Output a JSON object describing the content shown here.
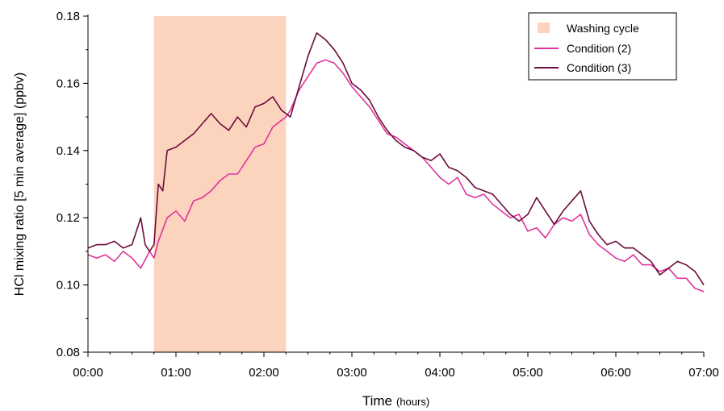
{
  "chart_data": {
    "type": "line",
    "xlabel": "Time",
    "xlabel_unit": "(hours)",
    "ylabel": "HCl mixing ratio [5 min average] (ppbv)",
    "xlim": [
      0,
      7
    ],
    "ylim": [
      0.08,
      0.18
    ],
    "x_ticks": [
      {
        "value": 0,
        "label": "00:00"
      },
      {
        "value": 1,
        "label": "01:00"
      },
      {
        "value": 2,
        "label": "02:00"
      },
      {
        "value": 3,
        "label": "03:00"
      },
      {
        "value": 4,
        "label": "04:00"
      },
      {
        "value": 5,
        "label": "05:00"
      },
      {
        "value": 6,
        "label": "06:00"
      },
      {
        "value": 7,
        "label": "07:00"
      }
    ],
    "y_ticks": [
      {
        "value": 0.08,
        "label": "0.08"
      },
      {
        "value": 0.1,
        "label": "0.10"
      },
      {
        "value": 0.12,
        "label": "0.12"
      },
      {
        "value": 0.14,
        "label": "0.14"
      },
      {
        "value": 0.16,
        "label": "0.16"
      },
      {
        "value": 0.18,
        "label": "0.18"
      }
    ],
    "grid": false,
    "legend_position": "top-right",
    "shaded_region": {
      "name": "Washing cycle",
      "x_start": 0.75,
      "x_end": 2.25,
      "color": "#fcd3bd"
    },
    "series": [
      {
        "name": "Condition (2)",
        "color": "#e0349c",
        "x": [
          0.0,
          0.1,
          0.2,
          0.3,
          0.4,
          0.5,
          0.6,
          0.7,
          0.75,
          0.8,
          0.9,
          1.0,
          1.1,
          1.2,
          1.3,
          1.4,
          1.5,
          1.6,
          1.7,
          1.8,
          1.9,
          2.0,
          2.1,
          2.2,
          2.25,
          2.3,
          2.4,
          2.5,
          2.6,
          2.7,
          2.8,
          2.9,
          3.0,
          3.1,
          3.2,
          3.3,
          3.4,
          3.5,
          3.6,
          3.7,
          3.8,
          3.9,
          4.0,
          4.1,
          4.2,
          4.3,
          4.4,
          4.5,
          4.6,
          4.7,
          4.8,
          4.9,
          5.0,
          5.1,
          5.2,
          5.3,
          5.4,
          5.5,
          5.6,
          5.7,
          5.8,
          5.9,
          6.0,
          6.1,
          6.2,
          6.3,
          6.4,
          6.5,
          6.6,
          6.7,
          6.8,
          6.9,
          7.0
        ],
        "y": [
          0.109,
          0.108,
          0.109,
          0.107,
          0.11,
          0.108,
          0.105,
          0.11,
          0.108,
          0.113,
          0.12,
          0.122,
          0.119,
          0.125,
          0.126,
          0.128,
          0.131,
          0.133,
          0.133,
          0.137,
          0.141,
          0.142,
          0.147,
          0.149,
          0.15,
          0.152,
          0.158,
          0.162,
          0.166,
          0.167,
          0.166,
          0.163,
          0.159,
          0.156,
          0.153,
          0.149,
          0.145,
          0.144,
          0.142,
          0.14,
          0.138,
          0.135,
          0.132,
          0.13,
          0.132,
          0.127,
          0.126,
          0.127,
          0.124,
          0.122,
          0.12,
          0.121,
          0.116,
          0.117,
          0.114,
          0.118,
          0.12,
          0.119,
          0.121,
          0.115,
          0.112,
          0.11,
          0.108,
          0.107,
          0.109,
          0.106,
          0.106,
          0.104,
          0.105,
          0.102,
          0.102,
          0.099,
          0.098
        ]
      },
      {
        "name": "Condition (3)",
        "color": "#6b0c3a",
        "x": [
          0.0,
          0.1,
          0.2,
          0.3,
          0.4,
          0.5,
          0.55,
          0.6,
          0.65,
          0.7,
          0.75,
          0.8,
          0.85,
          0.9,
          1.0,
          1.1,
          1.2,
          1.3,
          1.4,
          1.5,
          1.6,
          1.7,
          1.8,
          1.9,
          2.0,
          2.1,
          2.2,
          2.25,
          2.3,
          2.4,
          2.5,
          2.6,
          2.7,
          2.8,
          2.9,
          3.0,
          3.1,
          3.2,
          3.3,
          3.4,
          3.5,
          3.6,
          3.7,
          3.8,
          3.9,
          4.0,
          4.1,
          4.2,
          4.3,
          4.4,
          4.5,
          4.6,
          4.7,
          4.8,
          4.9,
          5.0,
          5.1,
          5.2,
          5.3,
          5.4,
          5.5,
          5.6,
          5.7,
          5.8,
          5.9,
          6.0,
          6.1,
          6.2,
          6.3,
          6.4,
          6.5,
          6.6,
          6.7,
          6.8,
          6.9,
          7.0
        ],
        "y": [
          0.111,
          0.112,
          0.112,
          0.113,
          0.111,
          0.112,
          0.116,
          0.12,
          0.112,
          0.11,
          0.112,
          0.13,
          0.128,
          0.14,
          0.141,
          0.143,
          0.145,
          0.148,
          0.151,
          0.148,
          0.146,
          0.15,
          0.147,
          0.153,
          0.154,
          0.156,
          0.152,
          0.151,
          0.15,
          0.159,
          0.168,
          0.175,
          0.173,
          0.17,
          0.166,
          0.16,
          0.158,
          0.155,
          0.15,
          0.146,
          0.143,
          0.141,
          0.14,
          0.138,
          0.137,
          0.139,
          0.135,
          0.134,
          0.132,
          0.129,
          0.128,
          0.127,
          0.124,
          0.121,
          0.119,
          0.121,
          0.126,
          0.122,
          0.118,
          0.122,
          0.125,
          0.128,
          0.119,
          0.115,
          0.112,
          0.113,
          0.111,
          0.111,
          0.109,
          0.107,
          0.103,
          0.105,
          0.107,
          0.106,
          0.104,
          0.1
        ]
      }
    ]
  }
}
